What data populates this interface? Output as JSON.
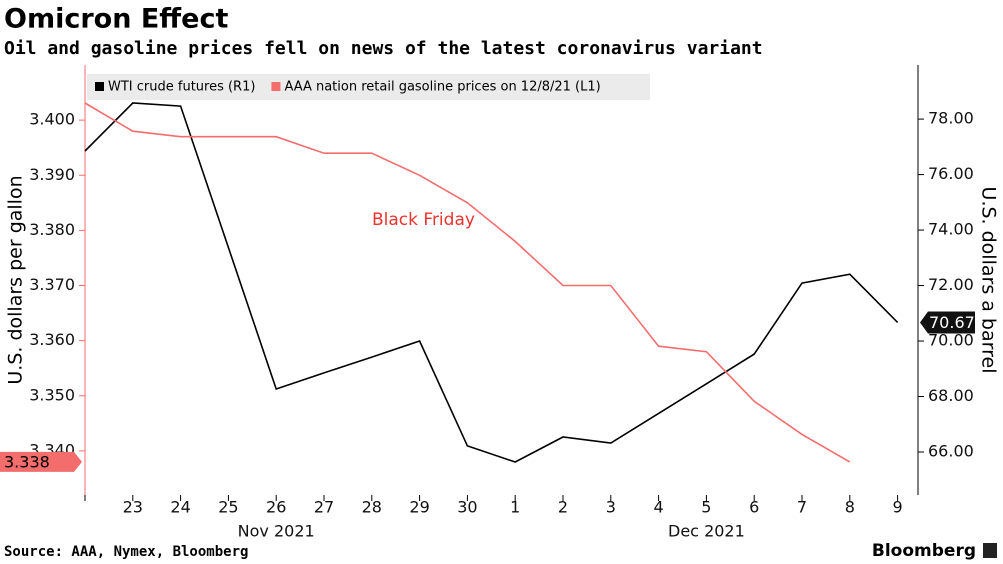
{
  "chart_data": {
    "type": "line",
    "title": "Omicron Effect",
    "subtitle": "Oil and gasoline prices fell on news of the latest coronavirus variant",
    "categories": [
      null,
      "23",
      "24",
      "25",
      "26",
      "27",
      "28",
      "29",
      "30",
      "1",
      "2",
      "3",
      "4",
      "5",
      "6",
      "7",
      "8",
      "9"
    ],
    "x_groups": [
      {
        "label": "Nov 2021",
        "count": 9
      },
      {
        "label": "Dec 2021",
        "count": 9
      }
    ],
    "series": [
      {
        "name": "WTI crude futures (R1)",
        "color": "#000000",
        "axis": "y2",
        "values": [
          76.85,
          78.58,
          78.47,
          73.37,
          68.27,
          68.85,
          69.42,
          70.0,
          66.22,
          65.64,
          66.54,
          66.32,
          67.39,
          68.46,
          69.53,
          72.09,
          72.41,
          70.67
        ]
      },
      {
        "name": "AAA nation retail gasoline prices on 12/8/21 (L1)",
        "color": "#f46d6d",
        "values": [
          3.4031,
          3.398,
          3.397,
          3.397,
          3.397,
          3.394,
          3.394,
          3.39,
          3.385,
          3.378,
          3.37,
          3.37,
          3.359,
          3.358,
          3.349,
          3.343,
          3.338,
          null
        ]
      }
    ],
    "ylabel": "U.S. dollars per gallon",
    "y2label": "U.S. dollars a barrel",
    "ylim": [
      3.332,
      3.41
    ],
    "yticks": [
      {
        "value": 3.34,
        "label": "3.340"
      },
      {
        "value": 3.35,
        "label": "3.350"
      },
      {
        "value": 3.36,
        "label": "3.360"
      },
      {
        "value": 3.37,
        "label": "3.370"
      },
      {
        "value": 3.38,
        "label": "3.380"
      },
      {
        "value": 3.39,
        "label": "3.390"
      },
      {
        "value": 3.4,
        "label": "3.400"
      }
    ],
    "y2lim": [
      64.45,
      79.95
    ],
    "y2ticks": [
      {
        "value": 66,
        "label": "66.00"
      },
      {
        "value": 68,
        "label": "68.00"
      },
      {
        "value": 70,
        "label": "70.00"
      },
      {
        "value": 72,
        "label": "72.00"
      },
      {
        "value": 74,
        "label": "74.00"
      },
      {
        "value": 76,
        "label": "76.00"
      },
      {
        "value": 78,
        "label": "78.00"
      }
    ],
    "annotation": "Black Friday",
    "source": "Source: AAA, Nymex, Bloomberg",
    "brand": "Bloomberg",
    "grid": false,
    "legend": "top-left"
  }
}
